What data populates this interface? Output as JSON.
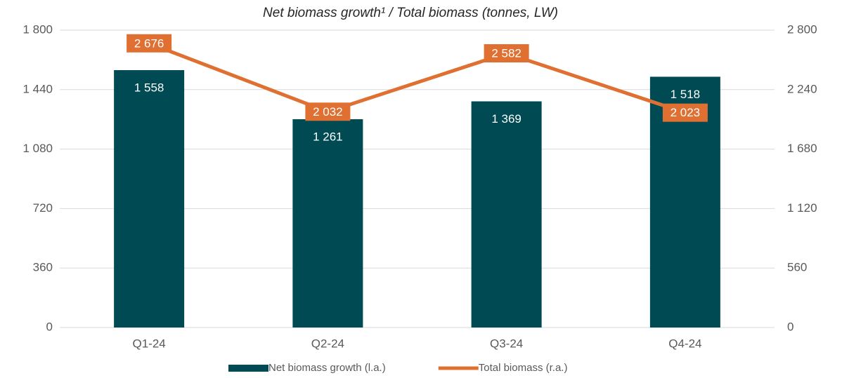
{
  "chart_data": {
    "type": "bar",
    "title": "Net biomass growth¹ / Total biomass (tonnes, LW)",
    "categories": [
      "Q1-24",
      "Q2-24",
      "Q3-24",
      "Q4-24"
    ],
    "series": [
      {
        "name": "Net biomass growth (l.a.)",
        "type": "bar",
        "color": "#004a54",
        "values": [
          1558,
          1261,
          1369,
          1518
        ],
        "value_labels": [
          "1 558",
          "1 261",
          "1 369",
          "1 518"
        ]
      },
      {
        "name": "Total biomass (r.a.)",
        "type": "line",
        "axis": "y2",
        "color": "#e07032",
        "values": [
          2676,
          2032,
          2582,
          2023
        ],
        "value_labels": [
          "2 676",
          "2 032",
          "2 582",
          "2 023"
        ]
      }
    ],
    "ylim": [
      0,
      1800
    ],
    "yticks": [
      0,
      360,
      720,
      {
        "value": 1080,
        "label": "1 080"
      },
      {
        "value": 1440,
        "label": "1 440"
      },
      {
        "value": 1800,
        "label": "1 800"
      }
    ],
    "y2lim": [
      0,
      2800
    ],
    "y2ticks": [
      0,
      560,
      {
        "value": 1120,
        "label": "1 120"
      },
      {
        "value": 1680,
        "label": "1 680"
      },
      {
        "value": 2240,
        "label": "2 240"
      },
      {
        "value": 2800,
        "label": "2 800"
      }
    ],
    "grid": true,
    "legend": "bottom"
  }
}
